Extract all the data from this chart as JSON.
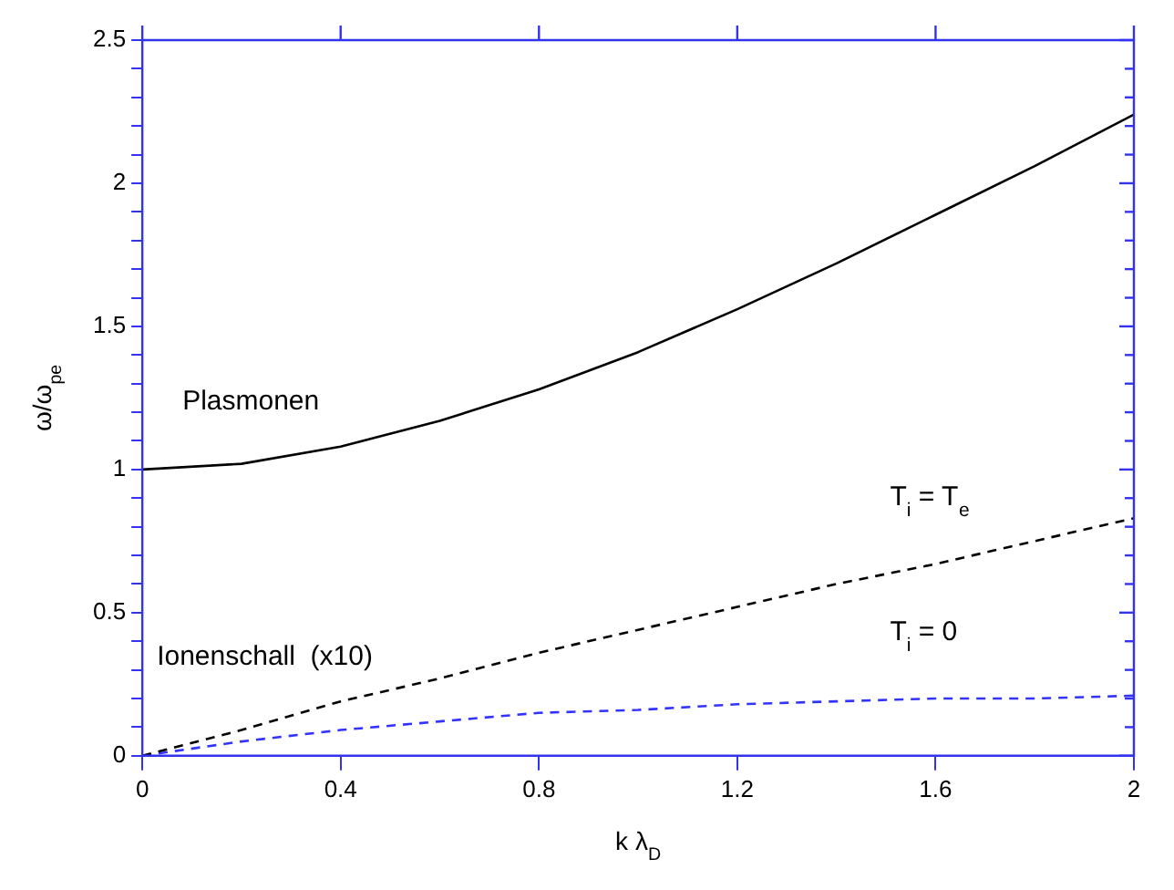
{
  "chart_data": {
    "type": "line",
    "xlabel": "k λ$_{D}$",
    "ylabel": "ω/ω$_{pe}$",
    "x": [
      0,
      0.2,
      0.4,
      0.6,
      0.8,
      1,
      1.2,
      1.4,
      1.6,
      1.8,
      2
    ],
    "series": [
      {
        "name": "Plasmonen",
        "color": "#000000",
        "line_style": "solid",
        "values": [
          1,
          1.02,
          1.08,
          1.17,
          1.28,
          1.41,
          1.56,
          1.72,
          1.89,
          2.06,
          2.24
        ]
      },
      {
        "name": "T$_{i}$ = T$_{e}$",
        "color": "#000000",
        "line_style": "dashed",
        "values": [
          0,
          0.09,
          0.19,
          0.27,
          0.36,
          0.44,
          0.52,
          0.6,
          0.67,
          0.75,
          0.83
        ]
      },
      {
        "name": "T$_{i}$ = 0",
        "color": "#3333ff",
        "line_style": "dashed",
        "values": [
          0,
          0.05,
          0.09,
          0.12,
          0.15,
          0.16,
          0.18,
          0.19,
          0.2,
          0.2,
          0.21
        ]
      }
    ],
    "annotations": [
      "Ionenschall  (x10)"
    ],
    "xlim": [
      0,
      2
    ],
    "xticks": [
      0,
      0.4,
      0.8,
      1.2,
      1.6,
      2
    ],
    "ylim": [
      0,
      2.5
    ],
    "yticks": [
      0,
      {
        "value": 0.1,
        "label": null
      },
      {
        "value": 0.2,
        "label": null
      },
      {
        "value": 0.3,
        "label": null
      },
      {
        "value": 0.4,
        "label": null
      },
      0.5,
      {
        "value": 0.6,
        "label": null
      },
      {
        "value": 0.7,
        "label": null
      },
      {
        "value": 0.8,
        "label": null
      },
      {
        "value": 0.9,
        "label": null
      },
      1,
      {
        "value": 1.1,
        "label": null
      },
      {
        "value": 1.2,
        "label": null
      },
      {
        "value": 1.3,
        "label": null
      },
      {
        "value": 1.4,
        "label": null
      },
      1.5,
      {
        "value": 1.6,
        "label": null
      },
      {
        "value": 1.7,
        "label": null
      },
      {
        "value": 1.8,
        "label": null
      },
      {
        "value": 1.9,
        "label": null
      },
      2,
      {
        "value": 2.1,
        "label": null
      },
      {
        "value": 2.2,
        "label": null
      },
      {
        "value": 2.3,
        "label": null
      },
      {
        "value": 2.4,
        "label": null
      },
      2.5
    ],
    "grid": false,
    "legend": false,
    "marker": "none"
  }
}
